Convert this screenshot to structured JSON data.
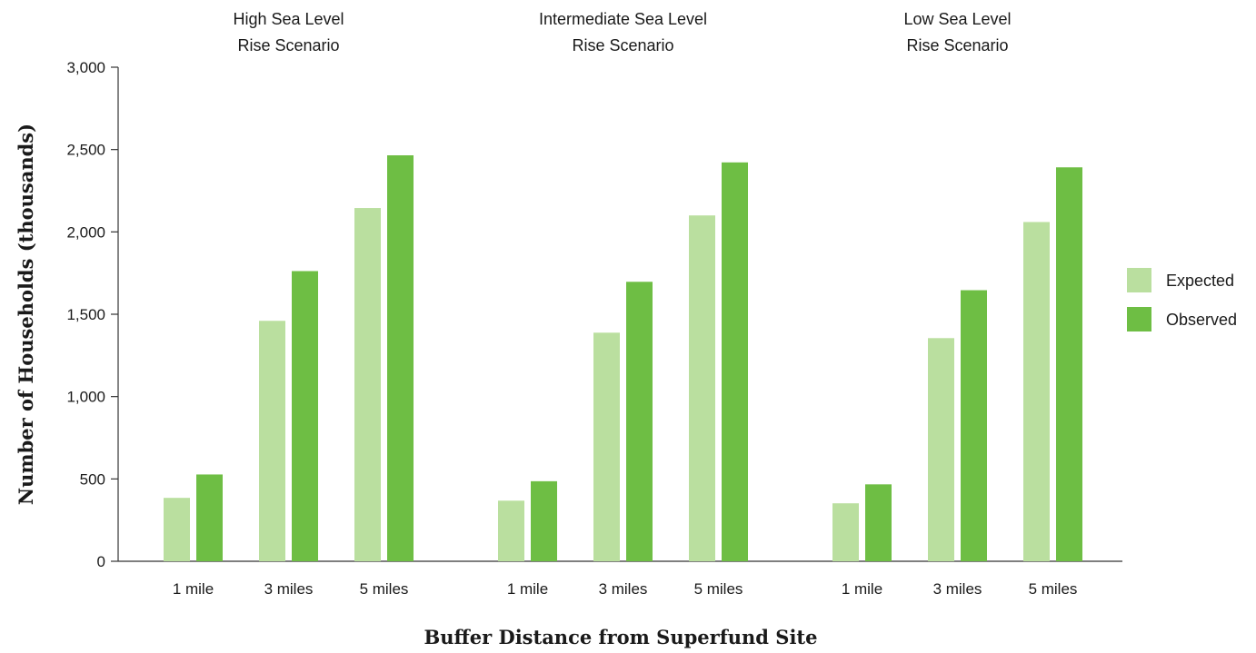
{
  "chart_data": {
    "type": "bar",
    "panels": [
      {
        "title_line1": "High Sea Level",
        "title_line2": "Rise Scenario"
      },
      {
        "title_line1": "Intermediate Sea Level",
        "title_line2": "Rise Scenario"
      },
      {
        "title_line1": "Low Sea Level",
        "title_line2": "Rise Scenario"
      }
    ],
    "categories": [
      "1 mile",
      "3 miles",
      "5 miles"
    ],
    "series": [
      {
        "name": "Expected",
        "color": "#badf9f",
        "values": [
          [
            385,
            1460,
            2145
          ],
          [
            368,
            1388,
            2100
          ],
          [
            352,
            1355,
            2060
          ]
        ]
      },
      {
        "name": "Observed",
        "color": "#6ebe44",
        "values": [
          [
            527,
            1762,
            2465
          ],
          [
            486,
            1697,
            2422
          ],
          [
            467,
            1646,
            2392
          ]
        ]
      }
    ],
    "ylabel": "Number of Households (thousands)",
    "xlabel": "Buffer Distance from Superfund Site",
    "ylim": [
      0,
      3000
    ],
    "yticks": [
      0,
      500,
      1000,
      1500,
      2000,
      2500,
      3000
    ],
    "ytick_labels": [
      "0",
      "500",
      "1,000",
      "1,500",
      "2,000",
      "2,500",
      "3,000"
    ],
    "legend_position": "right",
    "grid": false
  }
}
